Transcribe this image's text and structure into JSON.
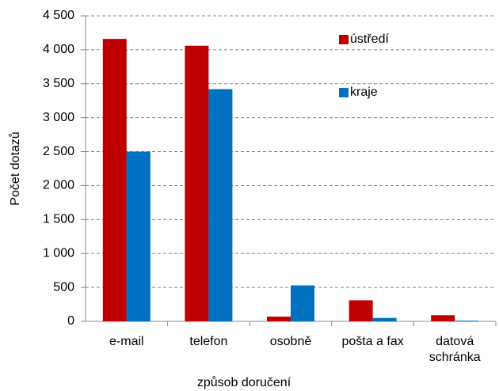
{
  "chart_data": {
    "type": "bar",
    "x_label": "způsob doručení",
    "y_label": "Počet dotazů",
    "categories": [
      "e-mail",
      "telefon",
      "osobně",
      "pošta a fax",
      "datová schránka"
    ],
    "series": [
      {
        "name": "ústředí",
        "color": "#c00000",
        "values": [
          4160,
          4060,
          70,
          310,
          90
        ]
      },
      {
        "name": "kraje",
        "color": "#0070c0",
        "values": [
          2500,
          3420,
          530,
          50,
          10
        ]
      }
    ],
    "ylim": [
      0,
      4500
    ],
    "yticks": [
      0,
      500,
      {
        "value": 1000,
        "label": "1 000"
      },
      {
        "value": 1500,
        "label": "1 500"
      },
      {
        "value": 2000,
        "label": "2 000"
      },
      {
        "value": 2500,
        "label": "2 500"
      },
      {
        "value": 3000,
        "label": "3 000"
      },
      {
        "value": 3500,
        "label": "3 500"
      },
      {
        "value": 4000,
        "label": "4 000"
      },
      {
        "value": 4500,
        "label": "4 500"
      }
    ],
    "grid": true
  }
}
